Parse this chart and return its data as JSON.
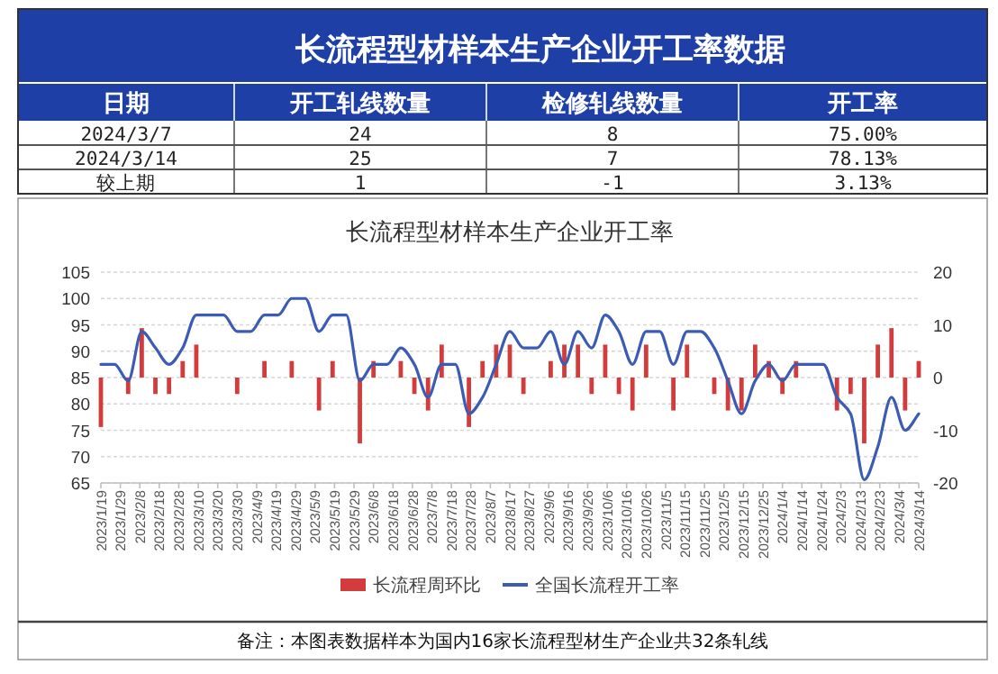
{
  "chart_data": {
    "type": "line",
    "title": "长流程型材样本生产企业开工率",
    "annotations": [
      "长流程型材样本生产企业开工率数据",
      "日期",
      "开工轧线数量",
      "检修轧线数量",
      "开工率",
      "2024/3/7",
      "24",
      "8",
      "75.00%",
      "2024/3/14",
      "25",
      "7",
      "78.13%",
      "较上期",
      "1",
      "-1",
      "3.13%",
      "备注：本图表数据样本为国内16家长流程型材生产企业共32条轧线"
    ],
    "x": [
      "2023-01-19",
      "2023-01-26",
      "2023-02-02",
      "2023-02-09",
      "2023-02-16",
      "2023-02-23",
      "2023-03-02",
      "2023-03-09",
      "2023-03-16",
      "2023-03-23",
      "2023-03-30",
      "2023-04-06",
      "2023-04-13",
      "2023-04-20",
      "2023-04-27",
      "2023-05-04",
      "2023-05-11",
      "2023-05-18",
      "2023-05-25",
      "2023-06-01",
      "2023-06-08",
      "2023-06-15",
      "2023-06-22",
      "2023-06-29",
      "2023-07-06",
      "2023-07-13",
      "2023-07-20",
      "2023-07-27",
      "2023-08-03",
      "2023-08-10",
      "2023-08-17",
      "2023-08-24",
      "2023-08-31",
      "2023-09-07",
      "2023-09-14",
      "2023-09-21",
      "2023-09-28",
      "2023-10-05",
      "2023-10-12",
      "2023-10-19",
      "2023-10-26",
      "2023-11-02",
      "2023-11-09",
      "2023-11-16",
      "2023-11-23",
      "2023-11-30",
      "2023-12-07",
      "2023-12-14",
      "2023-12-21",
      "2023-12-28",
      "2024-01-04",
      "2024-01-11",
      "2024-01-18",
      "2024-01-25",
      "2024-02-01",
      "2024-02-08",
      "2024-02-15",
      "2024-02-22",
      "2024-02-29",
      "2024-03-07",
      "2024-03-14"
    ],
    "series": [
      {
        "name": "长流程周环比",
        "type": "bar",
        "axis": "y2",
        "color": "#d23c3c",
        "values": [
          -9.375,
          0,
          -3.125,
          9.375,
          -3.125,
          -3.125,
          3.125,
          6.25,
          0,
          0,
          -3.125,
          0,
          3.125,
          0,
          3.125,
          0,
          -6.25,
          3.125,
          0,
          -12.5,
          3.125,
          0,
          3.125,
          -3.125,
          -6.25,
          6.25,
          0,
          -9.375,
          3.125,
          6.25,
          6.25,
          -3.125,
          0,
          3.125,
          6.25,
          6.25,
          -3.125,
          6.25,
          -3.125,
          -6.25,
          6.25,
          0,
          -6.25,
          6.25,
          0,
          -3.125,
          -6.25,
          -6.25,
          6.25,
          3.125,
          -3.125,
          3.125,
          0,
          0,
          -6.25,
          -3.125,
          -12.5,
          6.25,
          9.375,
          -6.25,
          3.125
        ]
      },
      {
        "name": "全国长流程开工率",
        "color": "#3c5cb4",
        "values": [
          87.5,
          87.5,
          84.375,
          93.75,
          90.625,
          87.5,
          90.625,
          96.875,
          96.875,
          96.875,
          93.75,
          93.75,
          96.875,
          96.875,
          100,
          100,
          93.75,
          96.875,
          96.875,
          84.375,
          87.5,
          87.5,
          90.625,
          87.5,
          81.25,
          87.5,
          87.5,
          78.125,
          81.25,
          87.5,
          93.75,
          90.625,
          90.625,
          93.75,
          87.5,
          93.75,
          90.625,
          96.875,
          93.75,
          87.5,
          93.75,
          93.75,
          87.5,
          93.75,
          93.75,
          90.625,
          84.375,
          78.125,
          84.375,
          87.5,
          84.375,
          87.5,
          87.5,
          87.5,
          81.25,
          78.125,
          65.625,
          71.875,
          81.25,
          75,
          78.125
        ]
      }
    ],
    "xlim": [
      "2023-01-19",
      "2024-03-14"
    ],
    "xticks": [
      {
        "value": "2023-01-19",
        "label": "2023/1/19"
      },
      {
        "value": "2023-01-29",
        "label": "2023/1/29"
      },
      {
        "value": "2023-02-08",
        "label": "2023/2/8"
      },
      {
        "value": "2023-02-18",
        "label": "2023/2/18"
      },
      {
        "value": "2023-02-28",
        "label": "2023/2/28"
      },
      {
        "value": "2023-03-10",
        "label": "2023/3/10"
      },
      {
        "value": "2023-03-20",
        "label": "2023/3/20"
      },
      {
        "value": "2023-03-30",
        "label": "2023/3/30"
      },
      {
        "value": "2023-04-09",
        "label": "2023/4/9"
      },
      {
        "value": "2023-04-19",
        "label": "2023/4/19"
      },
      {
        "value": "2023-04-29",
        "label": "2023/4/29"
      },
      {
        "value": "2023-05-09",
        "label": "2023/5/9"
      },
      {
        "value": "2023-05-19",
        "label": "2023/5/19"
      },
      {
        "value": "2023-05-29",
        "label": "2023/5/29"
      },
      {
        "value": "2023-06-08",
        "label": "2023/6/8"
      },
      {
        "value": "2023-06-18",
        "label": "2023/6/18"
      },
      {
        "value": "2023-06-28",
        "label": "2023/6/28"
      },
      {
        "value": "2023-07-08",
        "label": "2023/7/8"
      },
      {
        "value": "2023-07-18",
        "label": "2023/7/18"
      },
      {
        "value": "2023-07-28",
        "label": "2023/7/28"
      },
      {
        "value": "2023-08-07",
        "label": "2023/8/7"
      },
      {
        "value": "2023-08-17",
        "label": "2023/8/17"
      },
      {
        "value": "2023-08-27",
        "label": "2023/8/27"
      },
      {
        "value": "2023-09-06",
        "label": "2023/9/6"
      },
      {
        "value": "2023-09-16",
        "label": "2023/9/16"
      },
      {
        "value": "2023-09-26",
        "label": "2023/9/26"
      },
      {
        "value": "2023-10-06",
        "label": "2023/10/6"
      },
      {
        "value": "2023-10-16",
        "label": "2023/10/16"
      },
      {
        "value": "2023-10-26",
        "label": "2023/10/26"
      },
      {
        "value": "2023-11-05",
        "label": "2023/11/5"
      },
      {
        "value": "2023-11-15",
        "label": "2023/11/15"
      },
      {
        "value": "2023-11-25",
        "label": "2023/11/25"
      },
      {
        "value": "2023-12-05",
        "label": "2023/12/5"
      },
      {
        "value": "2023-12-15",
        "label": "2023/12/15"
      },
      {
        "value": "2023-12-25",
        "label": "2023/12/25"
      },
      {
        "value": "2024-01-04",
        "label": "2024/1/4"
      },
      {
        "value": "2024-01-14",
        "label": "2024/1/14"
      },
      {
        "value": "2024-01-24",
        "label": "2024/1/24"
      },
      {
        "value": "2024-02-03",
        "label": "2024/2/3"
      },
      {
        "value": "2024-02-13",
        "label": "2024/2/13"
      },
      {
        "value": "2024-02-23",
        "label": "2024/2/23"
      },
      {
        "value": "2024-03-04",
        "label": "2024/3/4"
      },
      {
        "value": "2024-03-14",
        "label": "2024/3/14"
      }
    ],
    "ylim": [
      65,
      105
    ],
    "yticks": [
      65,
      70,
      75,
      80,
      85,
      90,
      95,
      100,
      105
    ],
    "y2lim": [
      -20,
      20
    ],
    "y2ticks": [
      -20,
      -10,
      0,
      10,
      20
    ],
    "grid": "y",
    "legend": "bottom"
  }
}
